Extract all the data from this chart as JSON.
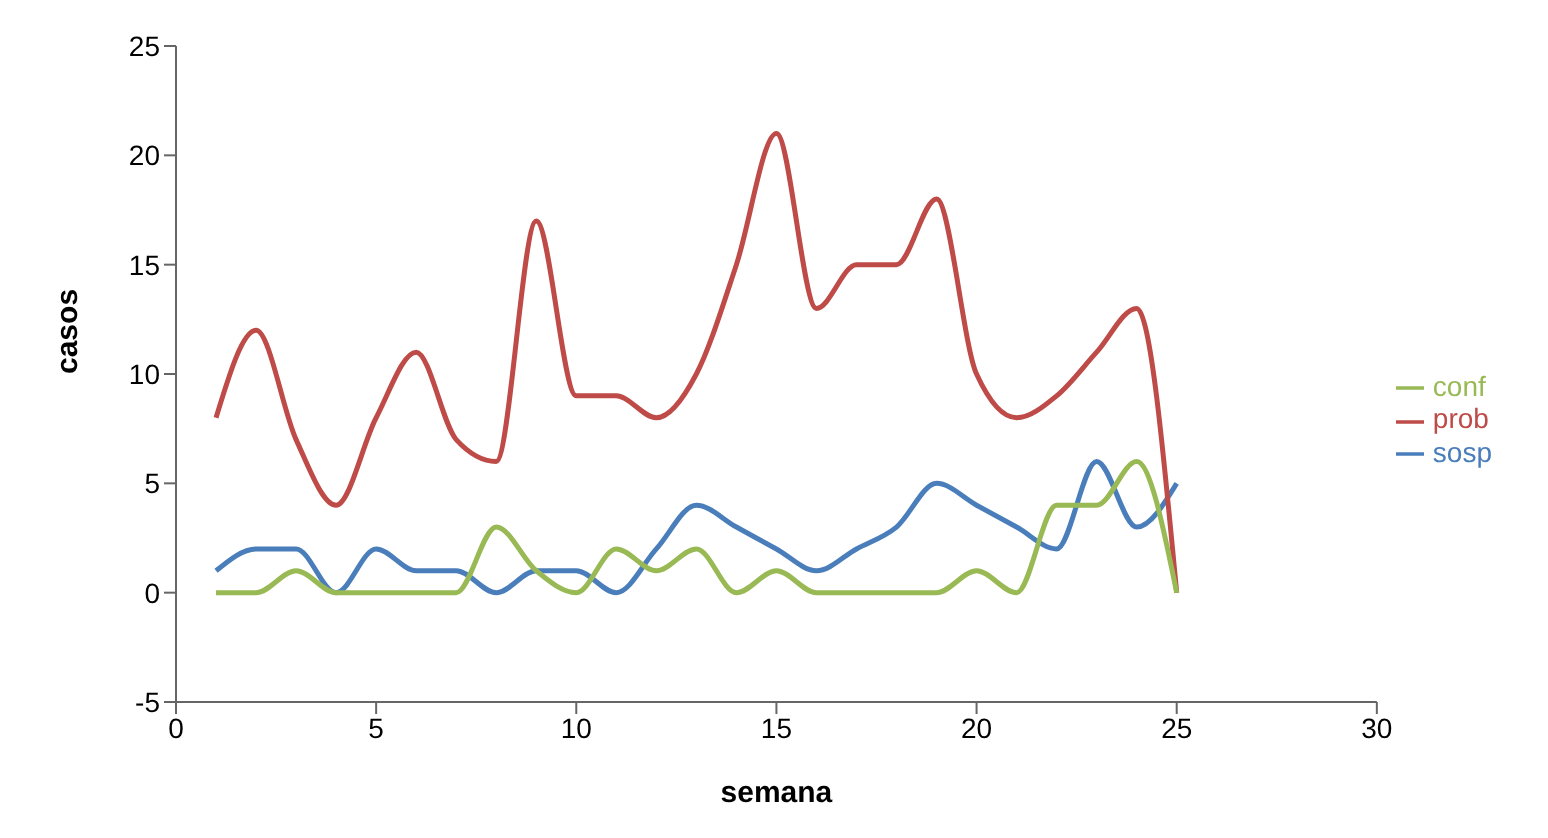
{
  "chart_data": {
    "type": "line",
    "xlabel": "semana",
    "ylabel": "casos",
    "x": [
      1,
      2,
      3,
      4,
      5,
      6,
      7,
      8,
      9,
      10,
      11,
      12,
      13,
      14,
      15,
      16,
      17,
      18,
      19,
      20,
      21,
      22,
      23,
      24,
      25
    ],
    "series": [
      {
        "name": "sosp",
        "color": "#4a7ebb",
        "values": [
          1,
          2,
          2,
          0,
          2,
          1,
          1,
          0,
          1,
          1,
          0,
          2,
          4,
          3,
          2,
          1,
          2,
          3,
          5,
          4,
          3,
          2,
          6,
          3,
          5
        ]
      },
      {
        "name": "prob",
        "color": "#be4b48",
        "values": [
          8,
          12,
          7,
          4,
          8,
          11,
          7,
          6,
          17,
          9,
          9,
          8,
          10,
          15,
          21,
          13,
          15,
          15,
          18,
          10,
          8,
          9,
          11,
          13,
          0
        ]
      },
      {
        "name": "conf",
        "color": "#98b954",
        "values": [
          0,
          0,
          1,
          0,
          0,
          0,
          0,
          3,
          1,
          0,
          2,
          1,
          2,
          0,
          1,
          0,
          0,
          0,
          0,
          1,
          0,
          4,
          4,
          6,
          0
        ]
      }
    ],
    "xlim": [
      0,
      30
    ],
    "xticks": [
      0,
      5,
      10,
      15,
      20,
      25,
      30
    ],
    "ylim": [
      -5,
      25
    ],
    "yticks": [
      -5,
      0,
      5,
      10,
      15,
      20,
      25
    ],
    "grid": false,
    "legend": "right",
    "marker": "none",
    "line_style": "solid"
  }
}
